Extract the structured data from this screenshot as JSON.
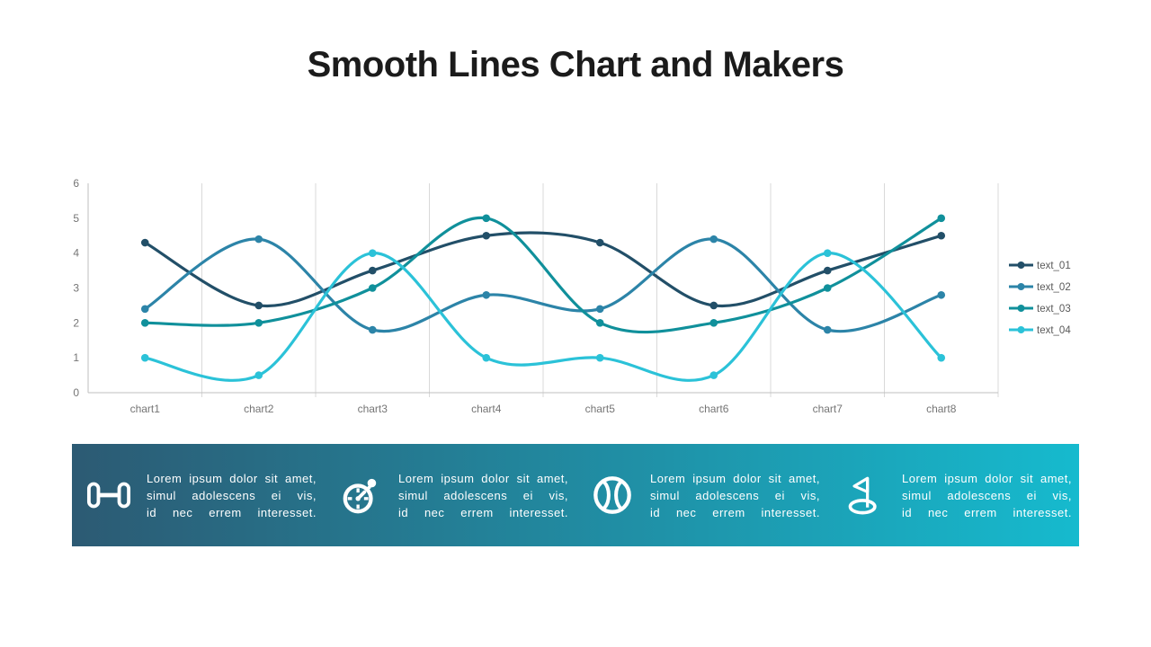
{
  "slide": {
    "title": "Smooth Lines Chart and Makers"
  },
  "chart_data": {
    "type": "line",
    "smooth": true,
    "title": "",
    "categories": [
      "chart1",
      "chart2",
      "chart3",
      "chart4",
      "chart5",
      "chart6",
      "chart7",
      "chart8"
    ],
    "series": [
      {
        "name": "text_01",
        "color": "#224f68",
        "values": [
          4.3,
          2.5,
          3.5,
          4.5,
          4.3,
          2.5,
          3.5,
          4.5
        ]
      },
      {
        "name": "text_02",
        "color": "#2c84a8",
        "values": [
          2.4,
          4.4,
          1.8,
          2.8,
          2.4,
          4.4,
          1.8,
          2.8
        ]
      },
      {
        "name": "text_03",
        "color": "#10909b",
        "values": [
          2,
          2,
          3,
          5,
          2,
          2,
          3,
          5
        ]
      },
      {
        "name": "text_04",
        "color": "#2bc2d8",
        "values": [
          1,
          0.5,
          4,
          1,
          1,
          0.5,
          4,
          1
        ]
      }
    ],
    "ylim": [
      0,
      6
    ],
    "yticks": [
      0,
      1,
      2,
      3,
      4,
      5,
      6
    ],
    "grid": "vertical",
    "legend_position": "right",
    "axis_text_color": "#757575",
    "axis_line_color": "#bfbfbf",
    "grid_color": "#d9d9d9",
    "legend_text_color": "#595959"
  },
  "banner": {
    "gradient_left": "#2c5a73",
    "gradient_right": "#16bace",
    "text_color": "#ffffff",
    "items": [
      {
        "icon": "dumbbell-icon",
        "lines": [
          "Lorem ipsum dolor sit amet,",
          "simul adolescens ei vis,",
          "id nec errem interesset."
        ]
      },
      {
        "icon": "stopwatch-icon",
        "lines": [
          "Lorem ipsum dolor sit amet,",
          "simul adolescens ei vis,",
          "id nec errem interesset."
        ]
      },
      {
        "icon": "tennis-ball-icon",
        "lines": [
          "Lorem ipsum dolor sit amet,",
          "simul adolescens ei vis,",
          "id nec errem interesset."
        ]
      },
      {
        "icon": "golf-flag-icon",
        "lines": [
          "Lorem ipsum dolor sit amet,",
          "simul adolescens ei vis,",
          "id nec errem interesset."
        ]
      }
    ]
  }
}
